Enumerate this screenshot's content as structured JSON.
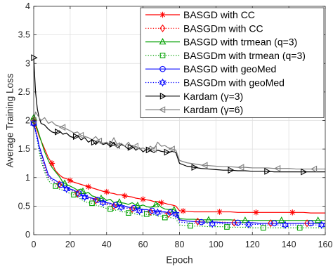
{
  "chart_data": {
    "type": "line",
    "xlabel": "Epoch",
    "ylabel": "Average Training Loss",
    "xlim": [
      0,
      160
    ],
    "ylim": [
      0,
      4
    ],
    "xticks": [
      0,
      20,
      40,
      60,
      80,
      100,
      120,
      140,
      160
    ],
    "xtick_labels": [
      "0",
      "20",
      "40",
      "60",
      "80",
      "100",
      "120",
      "140",
      "160"
    ],
    "yticks": [
      0,
      0.5,
      1,
      1.5,
      2,
      2.5,
      3,
      3.5,
      4
    ],
    "ytick_labels": [
      "0",
      "0.5",
      "1",
      "1.5",
      "2",
      "2.5",
      "3",
      "3.5",
      "4"
    ],
    "grid": true,
    "legend_position": "top-right",
    "x": [
      0,
      1,
      2,
      3,
      4,
      6,
      8,
      10,
      12,
      14,
      16,
      18,
      20,
      22,
      24,
      26,
      28,
      30,
      32,
      34,
      36,
      38,
      40,
      42,
      44,
      46,
      48,
      50,
      52,
      54,
      56,
      58,
      60,
      62,
      64,
      66,
      68,
      70,
      72,
      74,
      76,
      78,
      80,
      84,
      88,
      92,
      96,
      100,
      104,
      108,
      112,
      116,
      120,
      124,
      128,
      132,
      136,
      140,
      144,
      148,
      152,
      156,
      160
    ],
    "series": [
      {
        "name": "BASGD with CC",
        "color": "#ff0000",
        "line_style": "solid",
        "marker": "asterisk",
        "values": [
          2.0,
          1.9,
          1.82,
          1.72,
          1.65,
          1.5,
          1.35,
          1.25,
          1.12,
          1.05,
          1.0,
          0.98,
          0.95,
          0.92,
          0.9,
          0.88,
          0.86,
          0.84,
          0.82,
          0.8,
          0.78,
          0.76,
          0.75,
          0.73,
          0.72,
          0.7,
          0.7,
          0.68,
          0.67,
          0.66,
          0.64,
          0.63,
          0.62,
          0.61,
          0.6,
          0.58,
          0.58,
          0.56,
          0.55,
          0.53,
          0.52,
          0.5,
          0.42,
          0.41,
          0.4,
          0.4,
          0.4,
          0.4,
          0.4,
          0.4,
          0.39,
          0.39,
          0.39,
          0.39,
          0.39,
          0.39,
          0.39,
          0.39,
          0.39,
          0.39,
          0.38,
          0.38,
          0.38
        ]
      },
      {
        "name": "BASGDm with CC",
        "color": "#ff0000",
        "line_style": "dotted",
        "marker": "diamond",
        "values": [
          2.0,
          1.85,
          1.7,
          1.55,
          1.42,
          1.2,
          1.02,
          0.95,
          0.9,
          0.88,
          0.85,
          0.8,
          0.78,
          0.76,
          0.72,
          0.7,
          0.68,
          0.65,
          0.62,
          0.6,
          0.58,
          0.55,
          0.55,
          0.52,
          0.5,
          0.5,
          0.48,
          0.47,
          0.46,
          0.45,
          0.44,
          0.42,
          0.42,
          0.4,
          0.4,
          0.4,
          0.38,
          0.42,
          0.38,
          0.36,
          0.38,
          0.35,
          0.25,
          0.24,
          0.23,
          0.23,
          0.22,
          0.22,
          0.22,
          0.21,
          0.21,
          0.21,
          0.21,
          0.2,
          0.2,
          0.2,
          0.2,
          0.2,
          0.2,
          0.2,
          0.2,
          0.2,
          0.2
        ]
      },
      {
        "name": "BASGD with trmean (q=3)",
        "color": "#00a000",
        "line_style": "solid",
        "marker": "triangle-up",
        "values": [
          2.05,
          1.95,
          1.85,
          1.75,
          1.65,
          1.45,
          1.3,
          1.18,
          1.1,
          1.02,
          0.92,
          0.88,
          0.85,
          0.82,
          0.78,
          0.8,
          0.72,
          0.74,
          0.68,
          0.66,
          0.62,
          0.65,
          0.6,
          0.62,
          0.56,
          0.58,
          0.56,
          0.55,
          0.53,
          0.56,
          0.52,
          0.5,
          0.52,
          0.49,
          0.48,
          0.5,
          0.55,
          0.48,
          0.45,
          0.44,
          0.45,
          0.42,
          0.28,
          0.27,
          0.27,
          0.26,
          0.26,
          0.26,
          0.26,
          0.26,
          0.25,
          0.25,
          0.25,
          0.25,
          0.25,
          0.25,
          0.25,
          0.25,
          0.25,
          0.25,
          0.25,
          0.25,
          0.25
        ]
      },
      {
        "name": "BASGDm with trmean (q=3)",
        "color": "#00a000",
        "line_style": "dotted",
        "marker": "square",
        "values": [
          2.0,
          1.85,
          1.65,
          1.45,
          1.3,
          1.1,
          0.95,
          0.88,
          0.85,
          0.8,
          0.78,
          0.75,
          0.72,
          0.7,
          0.66,
          0.62,
          0.58,
          0.56,
          0.55,
          0.52,
          0.5,
          0.48,
          0.46,
          0.45,
          0.42,
          0.44,
          0.4,
          0.4,
          0.38,
          0.38,
          0.36,
          0.35,
          0.32,
          0.36,
          0.34,
          0.35,
          0.33,
          0.32,
          0.3,
          0.31,
          0.29,
          0.28,
          0.17,
          0.16,
          0.15,
          0.15,
          0.14,
          0.14,
          0.14,
          0.13,
          0.13,
          0.13,
          0.12,
          0.12,
          0.12,
          0.12,
          0.12,
          0.12,
          0.12,
          0.12,
          0.12,
          0.12,
          0.12
        ]
      },
      {
        "name": "BASGD with geoMed",
        "color": "#0000ff",
        "line_style": "solid",
        "marker": "circle",
        "values": [
          1.95,
          1.82,
          1.7,
          1.55,
          1.45,
          1.25,
          1.05,
          0.98,
          0.95,
          0.9,
          0.85,
          0.82,
          0.8,
          0.78,
          0.74,
          0.7,
          0.68,
          0.66,
          0.64,
          0.62,
          0.6,
          0.58,
          0.56,
          0.55,
          0.52,
          0.52,
          0.5,
          0.5,
          0.48,
          0.47,
          0.46,
          0.45,
          0.44,
          0.44,
          0.42,
          0.42,
          0.4,
          0.4,
          0.4,
          0.38,
          0.4,
          0.38,
          0.26,
          0.24,
          0.23,
          0.22,
          0.22,
          0.22,
          0.21,
          0.21,
          0.21,
          0.21,
          0.21,
          0.2,
          0.2,
          0.2,
          0.2,
          0.2,
          0.2,
          0.2,
          0.2,
          0.2,
          0.2
        ]
      },
      {
        "name": "BASGDm with geoMed",
        "color": "#0000ff",
        "line_style": "dotted",
        "marker": "hexagram",
        "values": [
          1.95,
          1.8,
          1.65,
          1.5,
          1.38,
          1.15,
          1.0,
          0.95,
          0.9,
          0.88,
          0.84,
          0.8,
          0.78,
          0.75,
          0.72,
          0.68,
          0.66,
          0.63,
          0.62,
          0.6,
          0.58,
          0.56,
          0.53,
          0.52,
          0.5,
          0.5,
          0.48,
          0.47,
          0.46,
          0.44,
          0.44,
          0.42,
          0.42,
          0.41,
          0.4,
          0.4,
          0.39,
          0.38,
          0.38,
          0.37,
          0.37,
          0.36,
          0.22,
          0.21,
          0.2,
          0.2,
          0.19,
          0.19,
          0.19,
          0.18,
          0.18,
          0.18,
          0.18,
          0.18,
          0.17,
          0.17,
          0.17,
          0.17,
          0.17,
          0.17,
          0.17,
          0.17,
          0.17
        ]
      },
      {
        "name": "Kardam (γ=3)",
        "color": "#000000",
        "line_style": "solid",
        "marker": "triangle-right",
        "values": [
          3.1,
          2.5,
          2.2,
          2.05,
          1.95,
          1.92,
          1.85,
          1.8,
          1.78,
          1.82,
          1.76,
          1.78,
          1.72,
          1.7,
          1.74,
          1.66,
          1.7,
          1.62,
          1.66,
          1.58,
          1.64,
          1.58,
          1.6,
          1.55,
          1.62,
          1.52,
          1.58,
          1.55,
          1.5,
          1.56,
          1.48,
          1.52,
          1.45,
          1.5,
          1.47,
          1.44,
          1.48,
          1.46,
          1.45,
          1.44,
          1.46,
          1.44,
          1.25,
          1.2,
          1.18,
          1.16,
          1.15,
          1.14,
          1.13,
          1.13,
          1.12,
          1.12,
          1.11,
          1.11,
          1.11,
          1.1,
          1.1,
          1.1,
          1.1,
          1.1,
          1.1,
          1.1,
          1.1
        ]
      },
      {
        "name": "Kardam (γ=6)",
        "color": "#808080",
        "line_style": "solid",
        "marker": "triangle-left",
        "values": [
          2.0,
          2.15,
          2.1,
          2.05,
          2.0,
          2.05,
          1.95,
          1.98,
          1.92,
          1.9,
          1.88,
          1.85,
          1.82,
          1.78,
          1.8,
          1.74,
          1.72,
          1.7,
          1.66,
          1.72,
          1.64,
          1.6,
          1.62,
          1.58,
          1.7,
          1.56,
          1.6,
          1.55,
          1.62,
          1.52,
          1.55,
          1.5,
          1.52,
          1.48,
          1.55,
          1.5,
          1.62,
          1.55,
          1.56,
          1.52,
          1.5,
          1.48,
          1.3,
          1.26,
          1.24,
          1.22,
          1.21,
          1.2,
          1.19,
          1.19,
          1.18,
          1.18,
          1.17,
          1.17,
          1.17,
          1.16,
          1.16,
          1.16,
          1.15,
          1.15,
          1.15,
          1.15,
          1.15
        ]
      }
    ]
  }
}
